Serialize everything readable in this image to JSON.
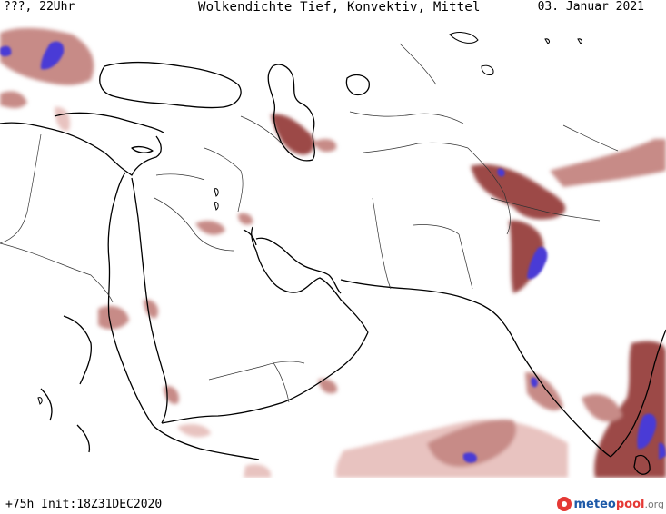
{
  "header": {
    "left": "???, 22Uhr",
    "title": "Wolkendichte  Tief, Konvektiv, Mittel",
    "date": "03. Januar 2021"
  },
  "footer": {
    "run": "+75h Init:18Z31DEC2020"
  },
  "logo": {
    "part1": "meteo",
    "part2": "pool",
    "part3": ".org"
  },
  "colors": {
    "cloud_light": "#e8c3c0",
    "cloud_mid": "#c78b87",
    "cloud_dark": "#9c4a47",
    "cloud_dense": "#4a3bd6",
    "coast": "#000000",
    "border": "#333333"
  }
}
